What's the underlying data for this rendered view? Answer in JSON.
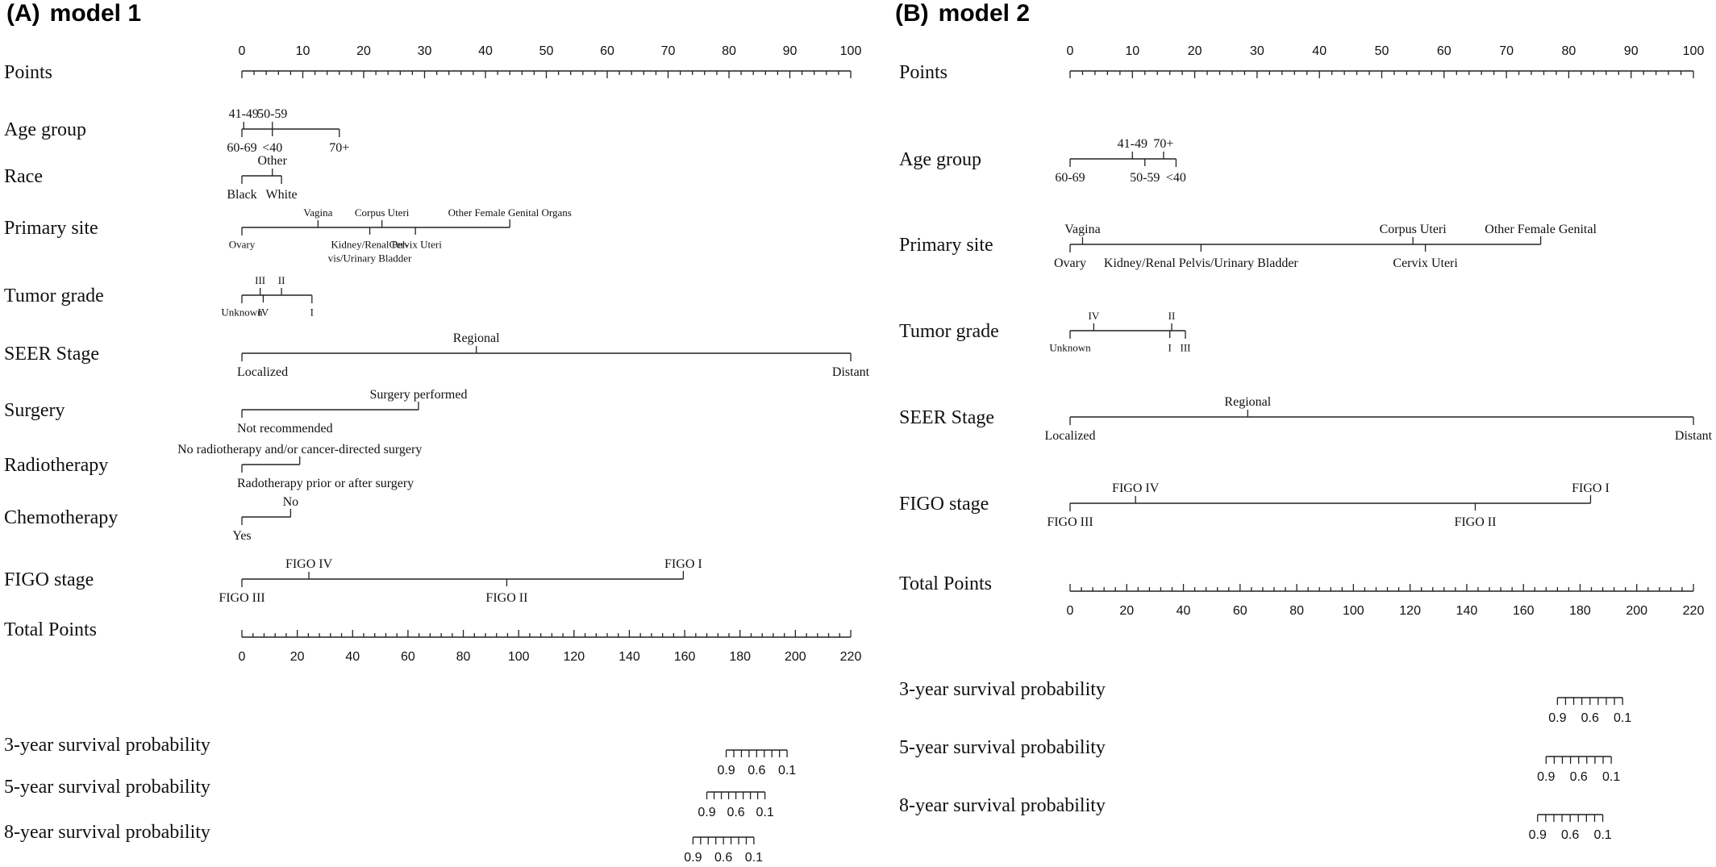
{
  "chart_data": [
    {
      "type": "nomogram",
      "panel": "A",
      "panel_label": "(A)",
      "title": "model 1",
      "points_axis": {
        "label": "Points",
        "range": [
          0,
          100
        ],
        "major": [
          0,
          10,
          20,
          30,
          40,
          50,
          60,
          70,
          80,
          90,
          100
        ],
        "minor_step": 2
      },
      "variables": [
        {
          "label": "Age group",
          "categories": [
            {
              "name": "41-49",
              "points": 0.3,
              "pos": "above"
            },
            {
              "name": "50-59",
              "points": 5,
              "pos": "above"
            },
            {
              "name": "60-69",
              "points": 0,
              "pos": "below"
            },
            {
              "name": "<40",
              "points": 5,
              "pos": "below"
            },
            {
              "name": "70+",
              "points": 16,
              "pos": "below"
            }
          ]
        },
        {
          "label": "Race",
          "categories": [
            {
              "name": "Other",
              "points": 5,
              "pos": "above"
            },
            {
              "name": "Black",
              "points": 0,
              "pos": "below"
            },
            {
              "name": "White",
              "points": 6.5,
              "pos": "below"
            }
          ]
        },
        {
          "label": "Primary site",
          "categories": [
            {
              "name": "Vagina",
              "points": 12.5,
              "pos": "above"
            },
            {
              "name": "Corpus Uteri",
              "points": 23,
              "pos": "above"
            },
            {
              "name": "Other Female Genital Organs",
              "points": 44,
              "pos": "above"
            },
            {
              "name": "Ovary",
              "points": 0,
              "pos": "below"
            },
            {
              "name": "Kidney/Renal Pel-",
              "points": 21,
              "pos": "below"
            },
            {
              "name": "vis/Urinary Bladder",
              "points": 21,
              "pos": "below2"
            },
            {
              "name": "Cervix Uteri",
              "points": 28.5,
              "pos": "below"
            }
          ]
        },
        {
          "label": "Tumor grade",
          "categories": [
            {
              "name": "III",
              "points": 3,
              "pos": "above"
            },
            {
              "name": "II",
              "points": 6.5,
              "pos": "above"
            },
            {
              "name": "Unknown",
              "points": 0,
              "pos": "below"
            },
            {
              "name": "IV",
              "points": 3.5,
              "pos": "below"
            },
            {
              "name": "I",
              "points": 11.5,
              "pos": "below"
            }
          ]
        },
        {
          "label": "SEER Stage",
          "categories": [
            {
              "name": "Regional",
              "points": 38.5,
              "pos": "above"
            },
            {
              "name": "Localized",
              "points": 0,
              "pos": "below"
            },
            {
              "name": "Distant",
              "points": 100,
              "pos": "below"
            }
          ]
        },
        {
          "label": "Surgery",
          "categories": [
            {
              "name": "Surgery performed",
              "points": 29,
              "pos": "above"
            },
            {
              "name": "Not recommended",
              "points": 0,
              "pos": "below"
            }
          ]
        },
        {
          "label": "Radiotherapy",
          "categories": [
            {
              "name": "No radiotherapy and/or cancer-directed surgery",
              "points": 9.5,
              "pos": "above"
            },
            {
              "name": "Radotherapy prior or after surgery",
              "points": 0,
              "pos": "below"
            }
          ]
        },
        {
          "label": "Chemotherapy",
          "categories": [
            {
              "name": "No",
              "points": 8,
              "pos": "above"
            },
            {
              "name": "Yes",
              "points": 0,
              "pos": "below"
            }
          ]
        },
        {
          "label": "FIGO stage",
          "categories": [
            {
              "name": "FIGO IV",
              "points": 11,
              "pos": "above"
            },
            {
              "name": "FIGO I",
              "points": 72.5,
              "pos": "above"
            },
            {
              "name": "FIGO III",
              "points": 0,
              "pos": "below"
            },
            {
              "name": "FIGO II",
              "points": 43.5,
              "pos": "below"
            }
          ]
        }
      ],
      "total_points_axis": {
        "label": "Total Points",
        "range": [
          0,
          220
        ],
        "major": [
          0,
          20,
          40,
          60,
          80,
          100,
          120,
          140,
          160,
          180,
          200,
          220
        ],
        "minor_step": 4
      },
      "survival": [
        {
          "label": "3-year survival probability",
          "range_total": [
            175,
            197
          ],
          "tick_labels": [
            "0.9",
            "0.6",
            "0.1"
          ]
        },
        {
          "label": "5-year survival probability",
          "range_total": [
            168,
            189
          ],
          "tick_labels": [
            "0.9",
            "0.6",
            "0.1"
          ]
        },
        {
          "label": "8-year survival probability",
          "range_total": [
            163,
            185
          ],
          "tick_labels": [
            "0.9",
            "0.6",
            "0.1"
          ]
        }
      ]
    },
    {
      "type": "nomogram",
      "panel": "B",
      "panel_label": "(B)",
      "title": "model 2",
      "points_axis": {
        "label": "Points",
        "range": [
          0,
          100
        ],
        "major": [
          0,
          10,
          20,
          30,
          40,
          50,
          60,
          70,
          80,
          90,
          100
        ],
        "minor_step": 2
      },
      "variables": [
        {
          "label": "Age group",
          "categories": [
            {
              "name": "41-49",
              "points": 10,
              "pos": "above"
            },
            {
              "name": "70+",
              "points": 15,
              "pos": "above"
            },
            {
              "name": "60-69",
              "points": 0,
              "pos": "below"
            },
            {
              "name": "50-59",
              "points": 12,
              "pos": "below"
            },
            {
              "name": "<40",
              "points": 17,
              "pos": "below"
            }
          ]
        },
        {
          "label": "Primary site",
          "categories": [
            {
              "name": "Vagina",
              "points": 2,
              "pos": "above"
            },
            {
              "name": "Corpus Uteri",
              "points": 55,
              "pos": "above"
            },
            {
              "name": "Other Female Genital",
              "points": 75.5,
              "pos": "above"
            },
            {
              "name": "Ovary",
              "points": 0,
              "pos": "below"
            },
            {
              "name": "Kidney/Renal Pelvis/Urinary Bladder",
              "points": 21,
              "pos": "below"
            },
            {
              "name": "Cervix Uteri",
              "points": 57,
              "pos": "below"
            }
          ]
        },
        {
          "label": "Tumor grade",
          "categories": [
            {
              "name": "IV",
              "points": 3.8,
              "pos": "above"
            },
            {
              "name": "II",
              "points": 16.3,
              "pos": "above"
            },
            {
              "name": "Unknown",
              "points": 0,
              "pos": "below"
            },
            {
              "name": "I",
              "points": 16,
              "pos": "below"
            },
            {
              "name": "III",
              "points": 18.5,
              "pos": "below"
            }
          ]
        },
        {
          "label": "SEER Stage",
          "categories": [
            {
              "name": "Regional",
              "points": 28.5,
              "pos": "above"
            },
            {
              "name": "Localized",
              "points": 0,
              "pos": "below"
            },
            {
              "name": "Distant",
              "points": 100,
              "pos": "below"
            }
          ]
        },
        {
          "label": "FIGO stage",
          "categories": [
            {
              "name": "FIGO IV",
              "points": 10.5,
              "pos": "above"
            },
            {
              "name": "FIGO I",
              "points": 83.5,
              "pos": "above"
            },
            {
              "name": "FIGO III",
              "points": 0,
              "pos": "below"
            },
            {
              "name": "FIGO II",
              "points": 65,
              "pos": "below"
            }
          ]
        }
      ],
      "total_points_axis": {
        "label": "Total Points",
        "range": [
          0,
          220
        ],
        "major": [
          0,
          20,
          40,
          60,
          80,
          100,
          120,
          140,
          160,
          180,
          200,
          220
        ],
        "minor_step": 4
      },
      "survival": [
        {
          "label": "3-year survival probability",
          "range_total": [
            172,
            195
          ],
          "tick_labels": [
            "0.9",
            "0.6",
            "0.1"
          ]
        },
        {
          "label": "5-year survival probability",
          "range_total": [
            168,
            191
          ],
          "tick_labels": [
            "0.9",
            "0.6",
            "0.1"
          ]
        },
        {
          "label": "8-year survival probability",
          "range_total": [
            165,
            188
          ],
          "tick_labels": [
            "0.9",
            "0.6",
            "0.1"
          ]
        }
      ]
    }
  ]
}
